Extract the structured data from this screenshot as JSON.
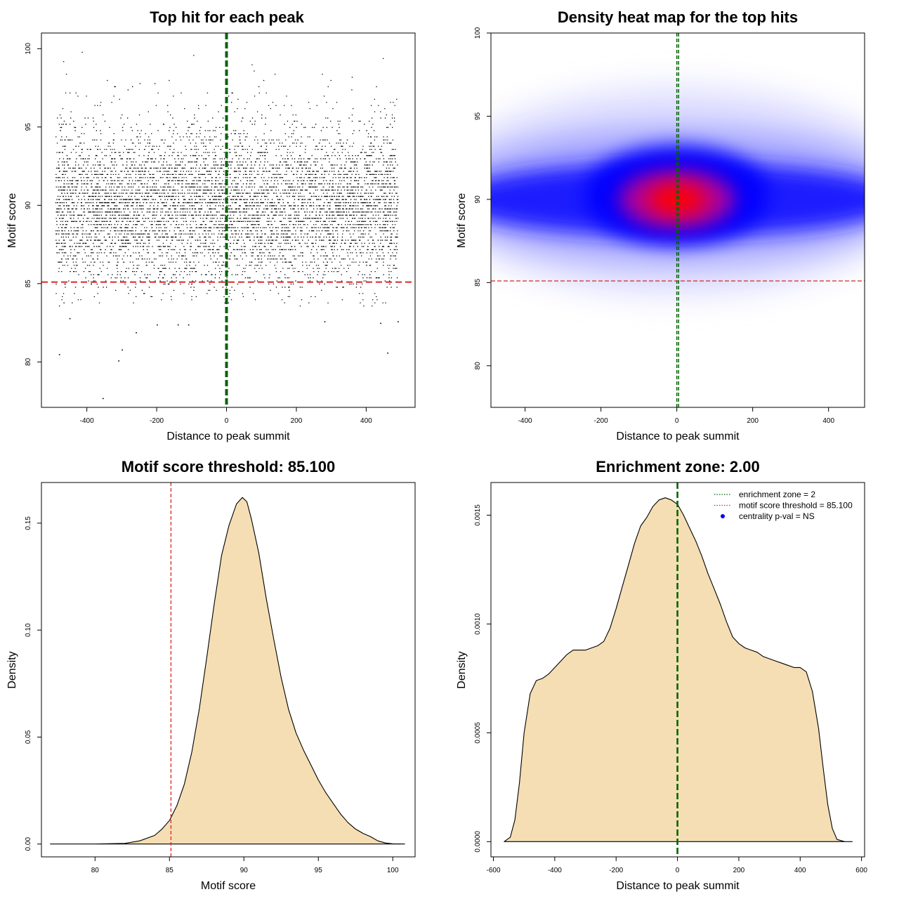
{
  "chart_data": [
    {
      "type": "scatter",
      "title": "Top hit for each peak",
      "xlabel": "Distance to peak summit",
      "ylabel": "Motif score",
      "xlim": [
        -530,
        540
      ],
      "ylim": [
        77.1,
        101.0
      ],
      "xticks": [
        -400,
        -200,
        0,
        200,
        400
      ],
      "yticks": [
        80,
        85,
        90,
        95,
        100
      ],
      "points_summary": {
        "x_range": [
          -490,
          490
        ],
        "y_center": 90,
        "y_spread_sd": 2.6,
        "approx_n_points": 20000
      },
      "outliers": [
        [
          -355,
          77.7
        ],
        [
          -300,
          80.8
        ],
        [
          -480,
          80.5
        ],
        [
          460,
          80.6
        ],
        [
          -310,
          80.1
        ],
        [
          -260,
          81.9
        ],
        [
          -200,
          82.4
        ],
        [
          -140,
          82.4
        ],
        [
          -110,
          82.4
        ],
        [
          -450,
          82.8
        ],
        [
          280,
          82.6
        ],
        [
          440,
          82.5
        ],
        [
          490,
          82.6
        ]
      ],
      "reference_lines": [
        {
          "orientation": "vertical",
          "value": 0,
          "color": "#006400",
          "label": "enrichment zone"
        },
        {
          "orientation": "horizontal",
          "value": 85.1,
          "color": "#d62728",
          "label": "motif score threshold"
        }
      ]
    },
    {
      "type": "heatmap",
      "title": "Density heat map for the top hits",
      "xlabel": "Distance to peak summit",
      "ylabel": "Motif score",
      "xlim": [
        -490,
        495
      ],
      "ylim": [
        77.5,
        100.0
      ],
      "xticks": [
        -400,
        -200,
        0,
        200,
        400
      ],
      "yticks": [
        80,
        85,
        90,
        95,
        100
      ],
      "density_peak": {
        "x": 0,
        "y": 90
      },
      "colormap": [
        "#ffffff",
        "#0000ff",
        "#ff0000"
      ],
      "reference_lines": [
        {
          "orientation": "vertical",
          "value": 0,
          "color": "#006400"
        },
        {
          "orientation": "horizontal",
          "value": 85.1,
          "color": "#d62728"
        }
      ]
    },
    {
      "type": "area",
      "title": "Motif score threshold: 85.100",
      "xlabel": "Motif score",
      "ylabel": "Density",
      "xlim": [
        76.4,
        101.5
      ],
      "ylim": [
        -0.006,
        0.169
      ],
      "xticks": [
        80,
        85,
        90,
        95,
        100
      ],
      "yticks": [
        0.0,
        0.05,
        0.1,
        0.15
      ],
      "ytick_labels": [
        "0.00",
        "0.05",
        "0.10",
        "0.15"
      ],
      "x": [
        77,
        80,
        82,
        83,
        84,
        84.5,
        85,
        85.5,
        86,
        86.5,
        87,
        87.5,
        88,
        88.5,
        89,
        89.5,
        89.9,
        90.2,
        90.5,
        91,
        91.5,
        92,
        92.5,
        93,
        93.5,
        94,
        94.5,
        95,
        95.5,
        96,
        96.5,
        97,
        97.5,
        98,
        98.5,
        99,
        99.5,
        100,
        100.8
      ],
      "y": [
        0,
        0,
        0.0003,
        0.0015,
        0.004,
        0.007,
        0.011,
        0.018,
        0.028,
        0.043,
        0.063,
        0.087,
        0.112,
        0.135,
        0.149,
        0.159,
        0.162,
        0.16,
        0.152,
        0.136,
        0.115,
        0.096,
        0.078,
        0.063,
        0.052,
        0.044,
        0.037,
        0.03,
        0.024,
        0.019,
        0.014,
        0.01,
        0.007,
        0.005,
        0.0035,
        0.0015,
        0.0005,
        0.0001,
        0
      ],
      "fill": "#f5deb3",
      "reference_lines": [
        {
          "orientation": "vertical",
          "value": 85.1,
          "color": "#d62728"
        }
      ]
    },
    {
      "type": "area",
      "title": "Enrichment zone: 2.00",
      "xlabel": "Distance to peak summit",
      "ylabel": "Density",
      "xlim": [
        -608,
        610
      ],
      "ylim": [
        -7e-05,
        0.00165
      ],
      "xticks": [
        -600,
        -400,
        -200,
        0,
        200,
        400,
        600
      ],
      "yticks": [
        0.0,
        0.0005,
        0.001,
        0.0015
      ],
      "ytick_labels": [
        "0.0000",
        "0.0005",
        "0.0010",
        "0.0015"
      ],
      "x": [
        -565,
        -545,
        -530,
        -515,
        -500,
        -480,
        -460,
        -440,
        -420,
        -400,
        -380,
        -360,
        -340,
        -320,
        -300,
        -280,
        -260,
        -240,
        -220,
        -200,
        -180,
        -160,
        -140,
        -120,
        -100,
        -80,
        -60,
        -40,
        -20,
        0,
        20,
        40,
        60,
        80,
        100,
        120,
        140,
        160,
        180,
        200,
        220,
        240,
        260,
        280,
        300,
        320,
        340,
        360,
        380,
        400,
        420,
        440,
        460,
        475,
        490,
        505,
        520,
        545,
        570
      ],
      "y": [
        0,
        2e-05,
        0.0001,
        0.00027,
        0.0005,
        0.00068,
        0.00074,
        0.00075,
        0.00077,
        0.0008,
        0.00083,
        0.00086,
        0.00088,
        0.00088,
        0.00088,
        0.00089,
        0.0009,
        0.00092,
        0.00098,
        0.00107,
        0.00117,
        0.00127,
        0.00137,
        0.00145,
        0.00149,
        0.00154,
        0.00157,
        0.00158,
        0.00157,
        0.00155,
        0.0015,
        0.00144,
        0.00138,
        0.00131,
        0.00123,
        0.00116,
        0.00109,
        0.00101,
        0.00094,
        0.00091,
        0.00089,
        0.00088,
        0.00087,
        0.00085,
        0.00084,
        0.00083,
        0.00082,
        0.00081,
        0.0008,
        0.0008,
        0.00078,
        0.00069,
        0.00052,
        0.00034,
        0.00017,
        6e-05,
        1e-05,
        0,
        0
      ],
      "fill": "#f5deb3",
      "reference_lines": [
        {
          "orientation": "vertical",
          "value": 0,
          "color": "#006400"
        }
      ],
      "legend": {
        "placement": "top-right",
        "entries": [
          {
            "label": "enrichment zone = 2",
            "color": "#006400",
            "style": "dotted-line"
          },
          {
            "label": "motif score threshold = 85.100",
            "color": "#d62728",
            "style": "dotted-line"
          },
          {
            "label": "centrality p-val = NS",
            "color": "#0000ff",
            "style": "point"
          }
        ]
      }
    }
  ]
}
